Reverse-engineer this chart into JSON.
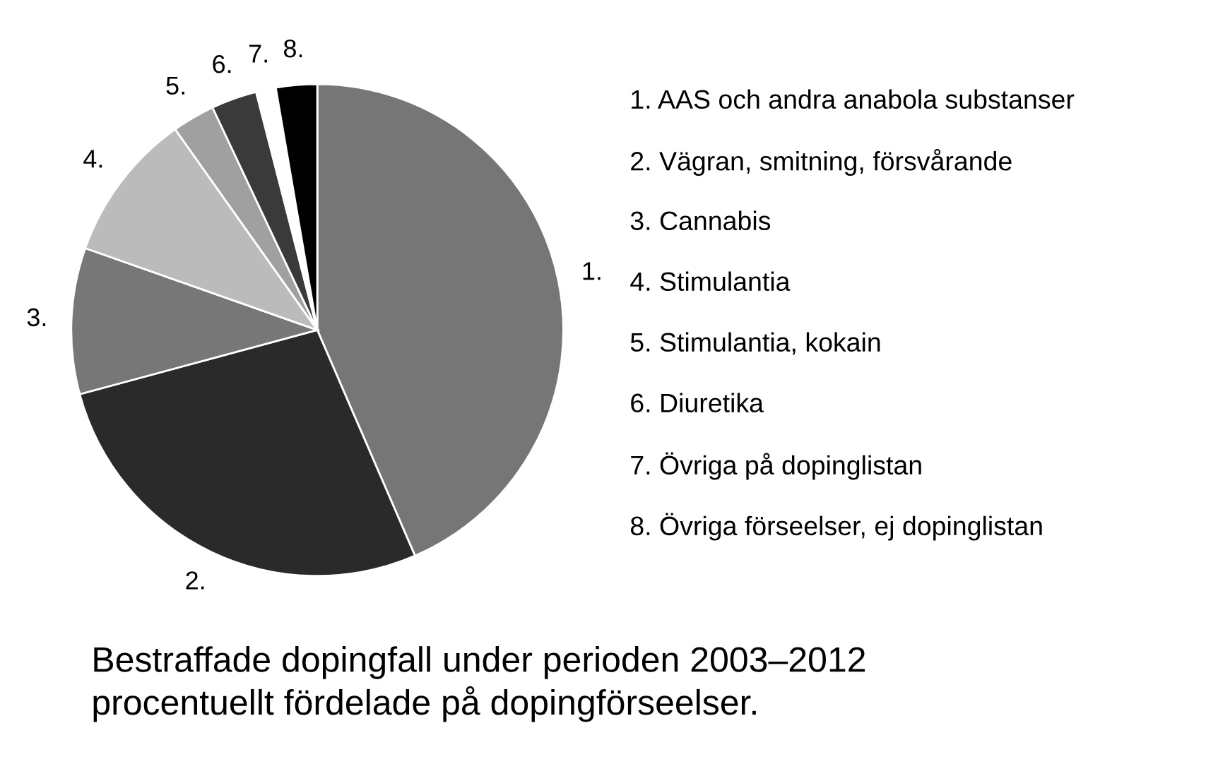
{
  "chart_data": {
    "type": "pie",
    "title": "Bestraffade dopingfall under perioden 2003–2012\nprocentuellt fördelade på dopingförseelser.",
    "categories": [
      "1.",
      "2.",
      "3.",
      "4.",
      "5.",
      "6.",
      "7.",
      "8."
    ],
    "values": [
      43.5,
      27.3,
      9.6,
      9.8,
      2.8,
      3.0,
      1.3,
      2.7
    ],
    "colors": [
      "#767676",
      "#2a2a2a",
      "#777777",
      "#bbbbbb",
      "#a0a0a0",
      "#3a3a3a",
      "#ffffff",
      "#000000"
    ],
    "annotations": [
      "1. AAS och andra anabola substanser",
      "2. Vägran, smitning, försvårande",
      "3. Cannabis",
      "4. Stimulantia",
      "5. Stimulantia, kokain",
      "6. Diuretika",
      "7. Övriga på dopinglistan",
      "8. Övriga förseelser, ej dopinglistan"
    ]
  }
}
